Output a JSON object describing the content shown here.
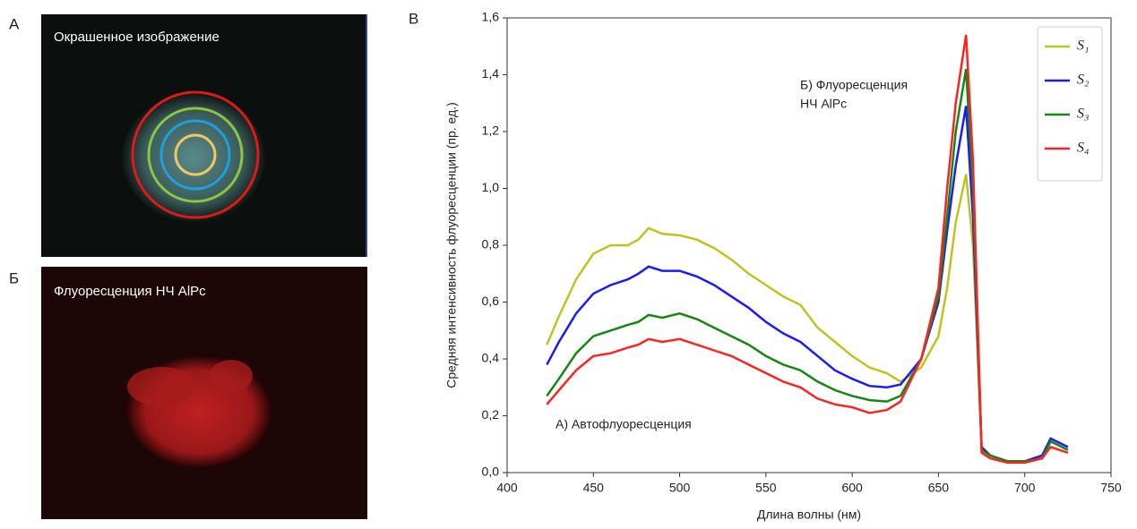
{
  "panels": {
    "a": {
      "label": "А",
      "caption": "Окрашенное изображение"
    },
    "b": {
      "label": "Б",
      "caption": "Флуоресценция НЧ AlPc"
    }
  },
  "chart_data": {
    "type": "line",
    "panel_label": "В",
    "xlabel": "Длина волны (нм)",
    "ylabel": "Средняя интенсивность флуоресценции (пр. ед.)",
    "annotations": [
      {
        "lines": [
          "А) Автофлуоресценция"
        ]
      },
      {
        "lines": [
          "Б) Флуоресценция",
          "НЧ AlPc"
        ]
      }
    ],
    "x": [
      423,
      430,
      440,
      450,
      460,
      470,
      476,
      482,
      490,
      500,
      510,
      520,
      530,
      540,
      550,
      560,
      570,
      580,
      590,
      600,
      610,
      620,
      628,
      640,
      650,
      655,
      660,
      666,
      670,
      675,
      680,
      690,
      700,
      710,
      715,
      725
    ],
    "series": [
      {
        "name": "S₁",
        "color": "#c2c21e",
        "values": [
          0.45,
          0.55,
          0.68,
          0.77,
          0.8,
          0.8,
          0.82,
          0.86,
          0.84,
          0.835,
          0.82,
          0.79,
          0.75,
          0.7,
          0.66,
          0.62,
          0.59,
          0.51,
          0.46,
          0.41,
          0.37,
          0.35,
          0.32,
          0.37,
          0.48,
          0.65,
          0.88,
          1.05,
          0.8,
          0.08,
          0.06,
          0.04,
          0.04,
          0.06,
          0.11,
          0.08
        ]
      },
      {
        "name": "S₂",
        "color": "#1a1aff",
        "values": [
          0.38,
          0.46,
          0.56,
          0.63,
          0.66,
          0.68,
          0.7,
          0.725,
          0.71,
          0.71,
          0.69,
          0.66,
          0.62,
          0.58,
          0.53,
          0.49,
          0.46,
          0.41,
          0.36,
          0.33,
          0.305,
          0.3,
          0.31,
          0.4,
          0.6,
          0.85,
          1.08,
          1.29,
          0.9,
          0.09,
          0.06,
          0.04,
          0.04,
          0.06,
          0.12,
          0.09
        ]
      },
      {
        "name": "S₃",
        "color": "#118811",
        "values": [
          0.27,
          0.33,
          0.42,
          0.48,
          0.5,
          0.52,
          0.53,
          0.555,
          0.545,
          0.56,
          0.54,
          0.51,
          0.48,
          0.45,
          0.41,
          0.38,
          0.36,
          0.32,
          0.29,
          0.27,
          0.255,
          0.25,
          0.27,
          0.4,
          0.62,
          0.9,
          1.2,
          1.42,
          1.0,
          0.08,
          0.06,
          0.04,
          0.04,
          0.05,
          0.11,
          0.08
        ]
      },
      {
        "name": "S₄",
        "color": "#ff2222",
        "values": [
          0.24,
          0.29,
          0.36,
          0.41,
          0.42,
          0.44,
          0.45,
          0.47,
          0.46,
          0.47,
          0.45,
          0.43,
          0.41,
          0.38,
          0.35,
          0.32,
          0.3,
          0.26,
          0.24,
          0.23,
          0.21,
          0.22,
          0.25,
          0.4,
          0.65,
          1.0,
          1.3,
          1.54,
          1.1,
          0.07,
          0.05,
          0.035,
          0.035,
          0.05,
          0.09,
          0.07
        ]
      }
    ],
    "xlim": [
      400,
      750
    ],
    "xticks": [
      400,
      450,
      500,
      550,
      600,
      650,
      700,
      750
    ],
    "ylim": [
      0,
      1.6
    ],
    "yticks": [
      {
        "value": 0,
        "label": "0,0"
      },
      {
        "value": 0.2,
        "label": "0,2"
      },
      {
        "value": 0.4,
        "label": "0,4"
      },
      {
        "value": 0.6,
        "label": "0,6"
      },
      {
        "value": 0.8,
        "label": "0,8"
      },
      {
        "value": 1,
        "label": "1,0"
      },
      {
        "value": 1.2,
        "label": "1,2"
      },
      {
        "value": 1.4,
        "label": "1,4"
      },
      {
        "value": 1.6,
        "label": "1,6"
      }
    ],
    "legend": "upper right"
  }
}
